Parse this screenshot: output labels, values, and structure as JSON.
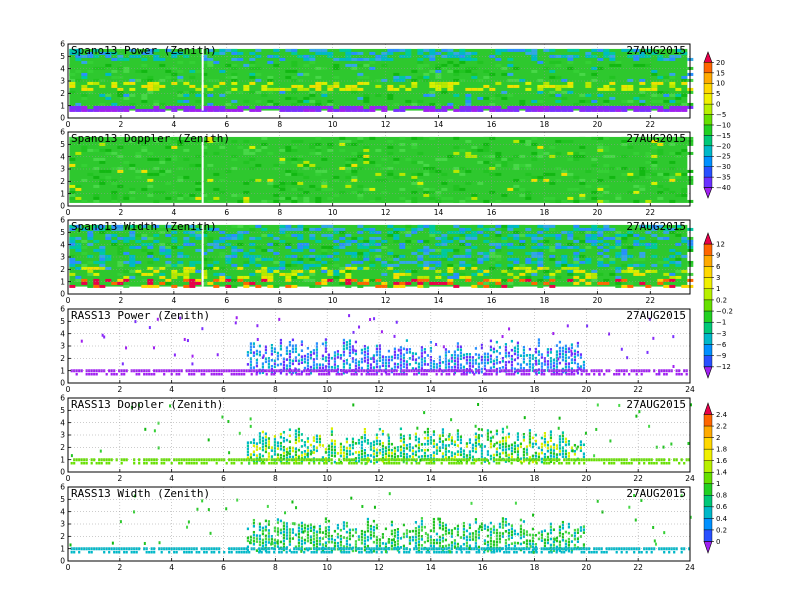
{
  "chart_data": {
    "type": "heatmap",
    "panels": [
      {
        "title": "Spano13 Power (Zenith)",
        "date": "27AUG2015",
        "xlim": [
          0,
          23.5
        ],
        "xticks": [
          0,
          2,
          4,
          6,
          8,
          10,
          12,
          14,
          16,
          18,
          20,
          22
        ],
        "xlabels": [
          "0",
          "2",
          "4",
          "6",
          "8",
          "10",
          "12",
          "14",
          "16",
          "18",
          "20",
          "22"
        ],
        "ylim": [
          0,
          6
        ],
        "yticks": [
          0,
          1,
          2,
          3,
          4,
          5,
          6
        ],
        "ylabels": [
          "0",
          "1",
          "2",
          "3",
          "4",
          "5",
          "6"
        ],
        "colorbar": 0,
        "fill": {
          "x0": 0.05,
          "x1": 23.4,
          "y0": 0.6,
          "y1": 5.6
        }
      },
      {
        "title": "Spano13 Doppler (Zenith)",
        "date": "27AUG2015",
        "xlim": [
          0,
          23.5
        ],
        "xticks": [
          0,
          2,
          4,
          6,
          8,
          10,
          12,
          14,
          16,
          18,
          20,
          22
        ],
        "xlabels": [
          "0",
          "2",
          "4",
          "6",
          "8",
          "10",
          "12",
          "14",
          "16",
          "18",
          "20",
          "22"
        ],
        "ylim": [
          0,
          6
        ],
        "yticks": [
          0,
          1,
          2,
          3,
          4,
          5,
          6
        ],
        "ylabels": [
          "0",
          "1",
          "2",
          "3",
          "4",
          "5",
          "6"
        ],
        "colorbar": 0,
        "fill": {
          "x0": 0.05,
          "x1": 23.4,
          "y0": 0.25,
          "y1": 5.6
        }
      },
      {
        "title": "Spano13 Width (Zenith)",
        "date": "27AUG2015",
        "xlim": [
          0,
          23.5
        ],
        "xticks": [
          0,
          2,
          4,
          6,
          8,
          10,
          12,
          14,
          16,
          18,
          20,
          22
        ],
        "xlabels": [
          "0",
          "2",
          "4",
          "6",
          "8",
          "10",
          "12",
          "14",
          "16",
          "18",
          "20",
          "22"
        ],
        "ylim": [
          0,
          6
        ],
        "yticks": [
          0,
          1,
          2,
          3,
          4,
          5,
          6
        ],
        "ylabels": [
          "0",
          "1",
          "2",
          "3",
          "4",
          "5",
          "6"
        ],
        "colorbar": 1,
        "fill": {
          "x0": 0.05,
          "x1": 23.4,
          "y0": 0.6,
          "y1": 5.6
        }
      },
      {
        "title": "RASS13 Power (Zenith)",
        "date": "27AUG2015",
        "xlim": [
          0,
          24
        ],
        "xticks": [
          0,
          2,
          4,
          6,
          8,
          10,
          12,
          14,
          16,
          18,
          20,
          22,
          24
        ],
        "xlabels": [
          "0",
          "2",
          "4",
          "6",
          "8",
          "10",
          "12",
          "14",
          "16",
          "18",
          "20",
          "22",
          "24"
        ],
        "ylim": [
          0,
          6
        ],
        "yticks": [
          0,
          1,
          2,
          3,
          4,
          5,
          6
        ],
        "ylabels": [
          "0",
          "1",
          "2",
          "3",
          "4",
          "5",
          "6"
        ],
        "colorbar": 1,
        "band": {
          "x0": 6.9,
          "x1": 19.9,
          "y0": 0.9,
          "y1": 2.4
        }
      },
      {
        "title": "RASS13 Doppler (Zenith)",
        "date": "27AUG2015",
        "xlim": [
          0,
          24
        ],
        "xticks": [
          0,
          2,
          4,
          6,
          8,
          10,
          12,
          14,
          16,
          18,
          20,
          22,
          24
        ],
        "xlabels": [
          "0",
          "2",
          "4",
          "6",
          "8",
          "10",
          "12",
          "14",
          "16",
          "18",
          "20",
          "22",
          "24"
        ],
        "ylim": [
          0,
          6
        ],
        "yticks": [
          0,
          1,
          2,
          3,
          4,
          5,
          6
        ],
        "ylabels": [
          "0",
          "1",
          "2",
          "3",
          "4",
          "5",
          "6"
        ],
        "colorbar": 2,
        "band": {
          "x0": 6.9,
          "x1": 19.9,
          "y0": 0.9,
          "y1": 2.4
        }
      },
      {
        "title": "RASS13 Width (Zenith)",
        "date": "27AUG2015",
        "xlim": [
          0,
          24
        ],
        "xticks": [
          0,
          2,
          4,
          6,
          8,
          10,
          12,
          14,
          16,
          18,
          20,
          22,
          24
        ],
        "xlabels": [
          "0",
          "2",
          "4",
          "6",
          "8",
          "10",
          "12",
          "14",
          "16",
          "18",
          "20",
          "22",
          "24"
        ],
        "ylim": [
          0,
          6
        ],
        "yticks": [
          0,
          1,
          2,
          3,
          4,
          5,
          6
        ],
        "ylabels": [
          "0",
          "1",
          "2",
          "3",
          "4",
          "5",
          "6"
        ],
        "colorbar": 2,
        "band": {
          "x0": 6.9,
          "x1": 19.9,
          "y0": 0.9,
          "y1": 2.4
        }
      }
    ],
    "colorbars": [
      {
        "labels": [
          "20",
          "15",
          "10",
          "5",
          "0",
          "−5",
          "−10",
          "−15",
          "−20",
          "−25",
          "−30",
          "−35",
          "−40"
        ],
        "colors": [
          "#e8004a",
          "#ff6600",
          "#ffaa00",
          "#ffd800",
          "#f0f000",
          "#b8f000",
          "#66e000",
          "#22d022",
          "#00c878",
          "#00b8c8",
          "#0090ff",
          "#2850ff",
          "#6a30ff",
          "#a020f0"
        ]
      },
      {
        "labels": [
          "12",
          "9",
          "6",
          "3",
          "1",
          "0.2",
          "−0.2",
          "−1",
          "−3",
          "−6",
          "−9",
          "−12"
        ],
        "colors": [
          "#e8004a",
          "#ff6600",
          "#ffaa00",
          "#ffd800",
          "#f0f000",
          "#b8f000",
          "#66e000",
          "#22d022",
          "#00c878",
          "#00b8c8",
          "#0090ff",
          "#2850ff",
          "#a020f0"
        ]
      },
      {
        "labels": [
          "2.4",
          "2.2",
          "2",
          "1.8",
          "1.6",
          "1.4",
          "1",
          "0.8",
          "0.6",
          "0.4",
          "0.2",
          "0"
        ],
        "colors": [
          "#e8004a",
          "#ff6600",
          "#ffaa00",
          "#ffd800",
          "#f0f000",
          "#b8f000",
          "#66e000",
          "#22d022",
          "#00c878",
          "#00b8c8",
          "#0090ff",
          "#2850ff",
          "#a020f0"
        ]
      }
    ]
  }
}
